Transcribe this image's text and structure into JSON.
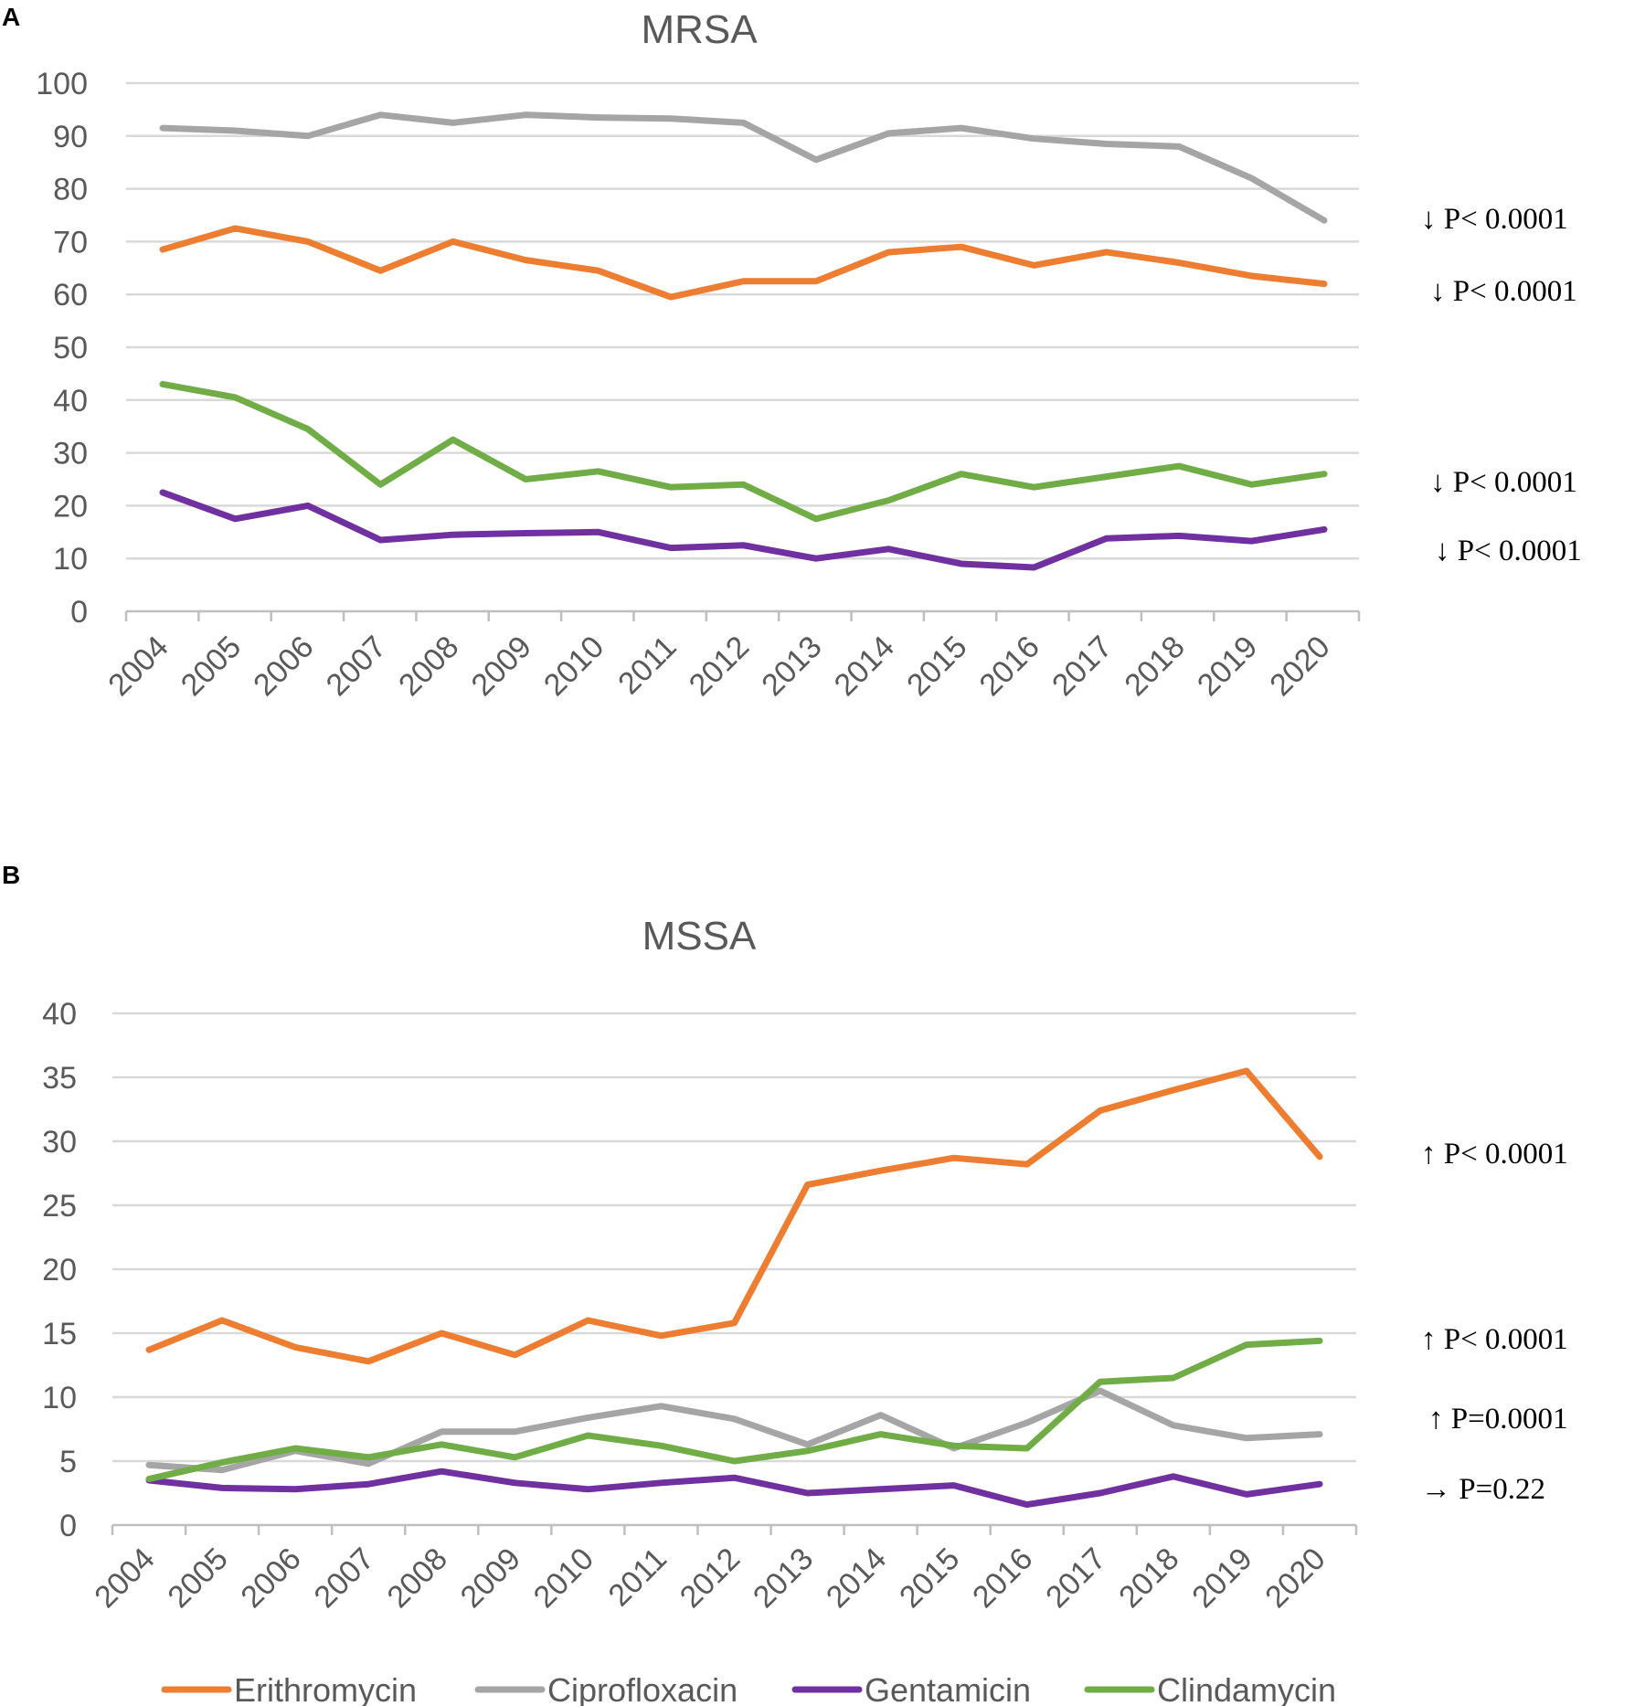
{
  "colors": {
    "Erithromycin": "#ED7D31",
    "Ciprofloxacin": "#A5A5A5",
    "Gentamicin": "#7030A0",
    "Clindamycin": "#70AD47"
  },
  "legend": [
    "Erithromycin",
    "Ciprofloxacin",
    "Gentamicin",
    "Clindamycin"
  ],
  "chart_data": [
    {
      "panel": "A",
      "type": "line",
      "title": "MRSA",
      "categories": [
        "2004",
        "2005",
        "2006",
        "2007",
        "2008",
        "2009",
        "2010",
        "2011",
        "2012",
        "2013",
        "2014",
        "2015",
        "2016",
        "2017",
        "2018",
        "2019",
        "2020"
      ],
      "ylim": [
        0,
        100
      ],
      "yticks": [
        0,
        10,
        20,
        30,
        40,
        50,
        60,
        70,
        80,
        90,
        100
      ],
      "grid": true,
      "series": [
        {
          "name": "Ciprofloxacin",
          "values": [
            91.5,
            91,
            90,
            94,
            92.5,
            94,
            93.5,
            93.3,
            92.5,
            85.5,
            90.5,
            91.5,
            89.5,
            88.5,
            88,
            82,
            74
          ]
        },
        {
          "name": "Erithromycin",
          "values": [
            68.5,
            72.5,
            70,
            64.5,
            70,
            66.5,
            64.5,
            59.5,
            62.5,
            62.5,
            68,
            69,
            65.5,
            68,
            66,
            63.5,
            62
          ]
        },
        {
          "name": "Clindamycin",
          "values": [
            43,
            40.5,
            34.5,
            24,
            32.5,
            25,
            26.5,
            23.5,
            24,
            17.5,
            21,
            26,
            23.5,
            25.5,
            27.5,
            24,
            26
          ]
        },
        {
          "name": "Gentamicin",
          "values": [
            22.5,
            17.5,
            20,
            13.5,
            14.5,
            14.8,
            15,
            12,
            12.5,
            10,
            11.8,
            9,
            8.3,
            13.8,
            14.3,
            13.3,
            15.5
          ]
        }
      ],
      "annotations": [
        {
          "series": "Ciprofloxacin",
          "arrow": "↓",
          "text": "P< 0.0001"
        },
        {
          "series": "Erithromycin",
          "arrow": "↓",
          "text": "P< 0.0001"
        },
        {
          "series": "Clindamycin",
          "arrow": "↓",
          "text": "P< 0.0001"
        },
        {
          "series": "Gentamicin",
          "arrow": "↓",
          "text": "P< 0.0001"
        }
      ]
    },
    {
      "panel": "B",
      "type": "line",
      "title": "MSSA",
      "categories": [
        "2004",
        "2005",
        "2006",
        "2007",
        "2008",
        "2009",
        "2010",
        "2011",
        "2012",
        "2013",
        "2014",
        "2015",
        "2016",
        "2017",
        "2018",
        "2019",
        "2020"
      ],
      "ylim": [
        0,
        40
      ],
      "yticks": [
        0,
        5,
        10,
        15,
        20,
        25,
        30,
        35,
        40
      ],
      "grid": true,
      "series": [
        {
          "name": "Erithromycin",
          "values": [
            13.7,
            16,
            13.9,
            12.8,
            15,
            13.3,
            16,
            14.8,
            15.8,
            26.6,
            27.7,
            28.7,
            28.2,
            32.4,
            34,
            35.5,
            28.8
          ]
        },
        {
          "name": "Ciprofloxacin",
          "values": [
            4.7,
            4.3,
            5.8,
            4.8,
            7.3,
            7.3,
            8.4,
            9.3,
            8.3,
            6.3,
            8.6,
            6,
            8,
            10.5,
            7.8,
            6.8,
            7.1
          ]
        },
        {
          "name": "Gentamicin",
          "values": [
            3.5,
            2.9,
            2.8,
            3.2,
            4.2,
            3.3,
            2.8,
            3.3,
            3.7,
            2.5,
            2.8,
            3.1,
            1.6,
            2.5,
            3.8,
            2.4,
            3.2
          ]
        },
        {
          "name": "Clindamycin",
          "values": [
            3.6,
            4.9,
            6,
            5.3,
            6.3,
            5.3,
            7,
            6.2,
            5,
            5.8,
            7.1,
            6.2,
            6,
            11.2,
            11.5,
            14.1,
            14.4
          ]
        }
      ],
      "annotations": [
        {
          "series": "Erithromycin",
          "arrow": "↑",
          "text": "P< 0.0001"
        },
        {
          "series": "Clindamycin",
          "arrow": "↑",
          "text": "P< 0.0001"
        },
        {
          "series": "Ciprofloxacin",
          "arrow": "↑",
          "text": "P=0.0001"
        },
        {
          "series": "Gentamicin",
          "arrow": "→",
          "text": "P=0.22"
        }
      ]
    }
  ]
}
